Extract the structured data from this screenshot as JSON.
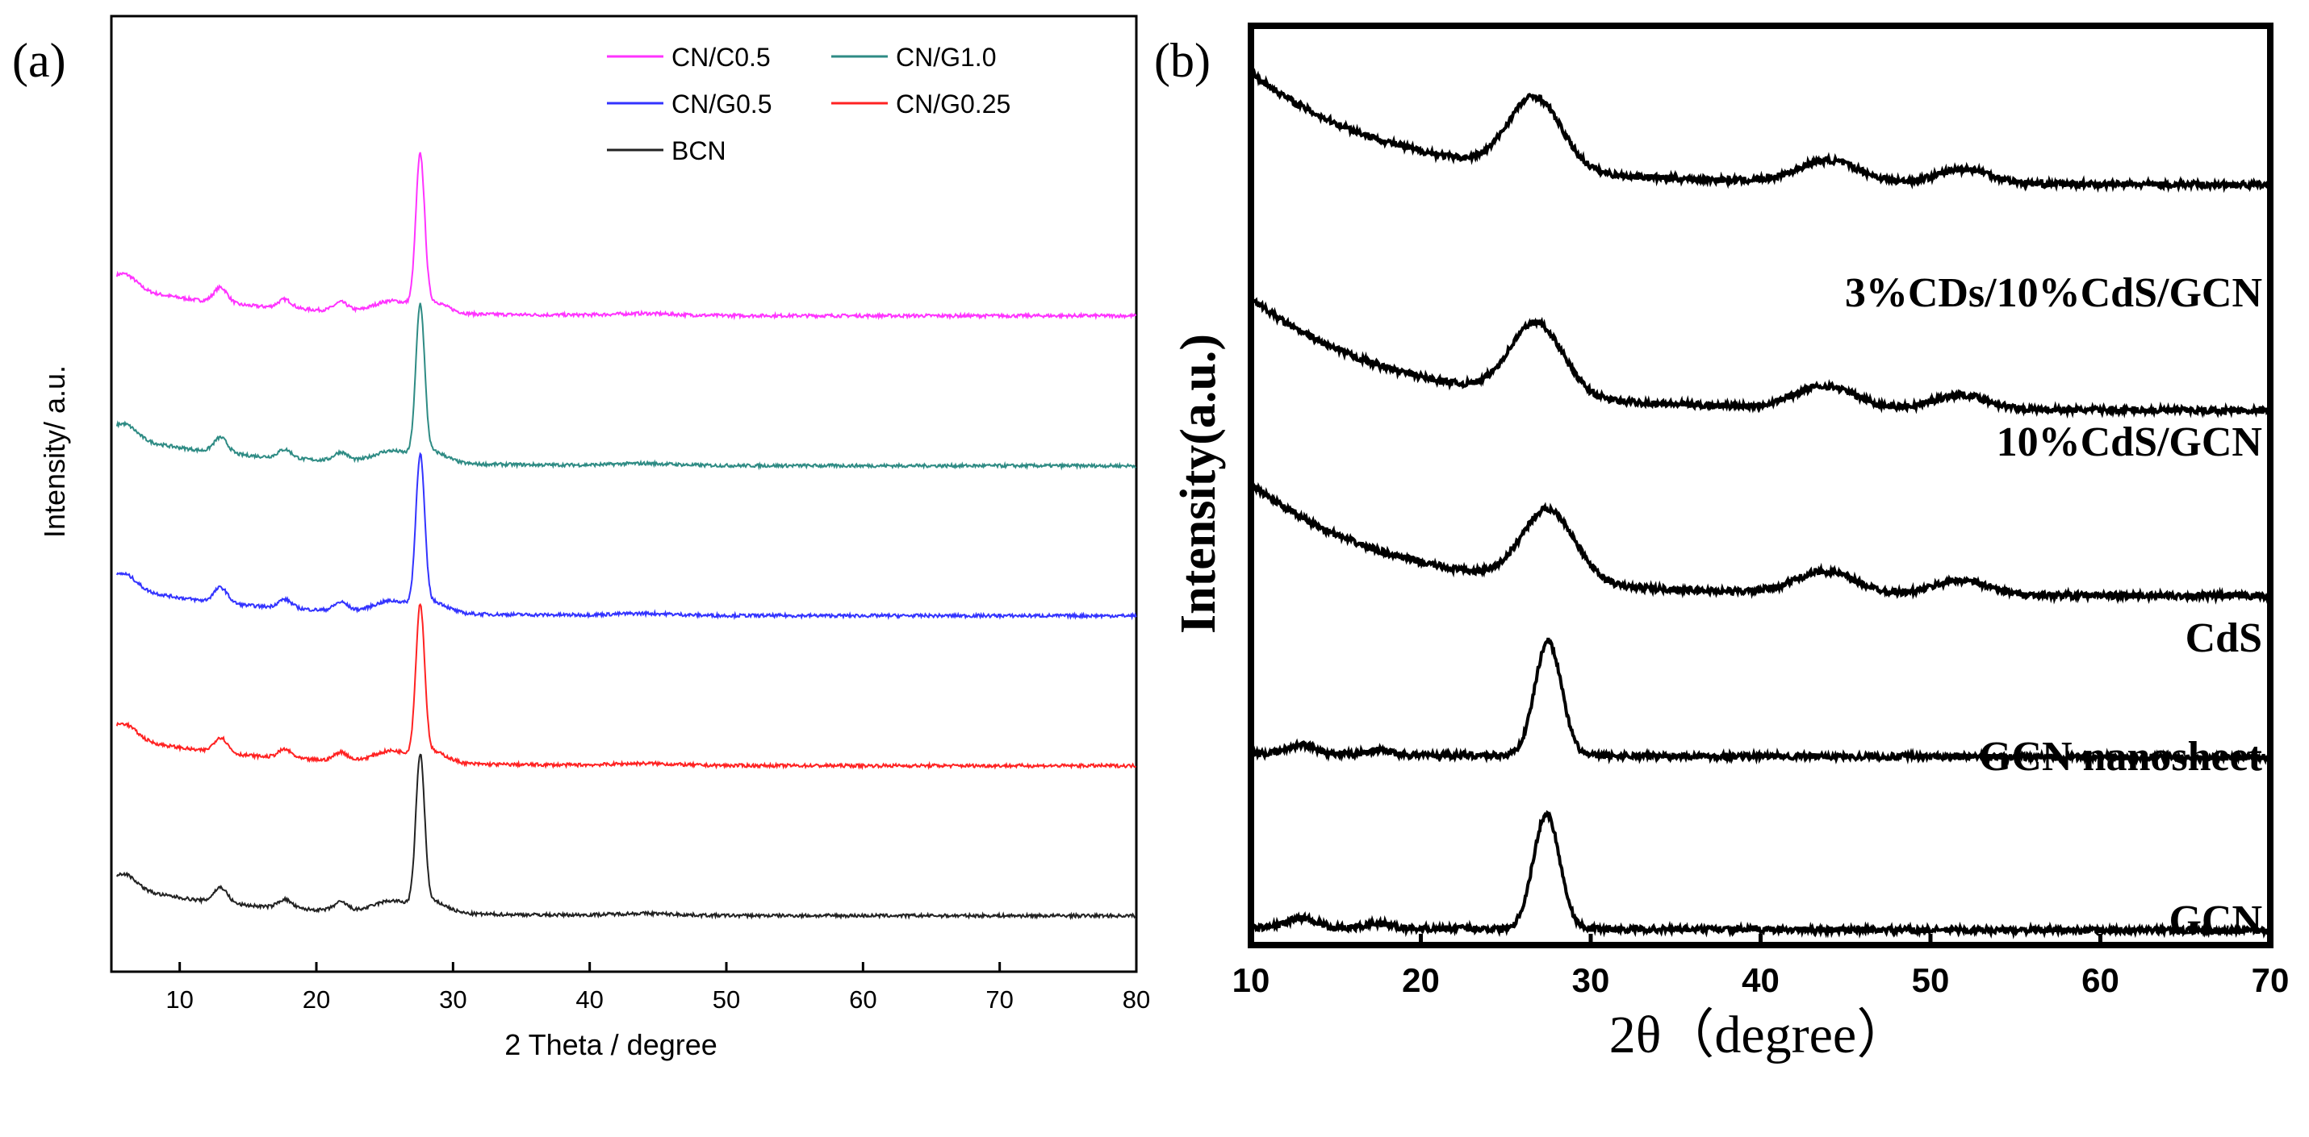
{
  "chart_data": [
    {
      "panel": "(a)",
      "type": "line",
      "xlabel": "2 Theta / degree",
      "ylabel": "Intensity/ a.u.",
      "xlim": [
        5,
        80
      ],
      "xticks": [
        10,
        20,
        30,
        40,
        50,
        60,
        70,
        80
      ],
      "y_ticks_shown": false,
      "legend": [
        {
          "name": "CN/C0.5",
          "color": "#ff33ff"
        },
        {
          "name": "CN/G1.0",
          "color": "#2e8b84"
        },
        {
          "name": "CN/G0.5",
          "color": "#3333ff"
        },
        {
          "name": "CN/G0.25",
          "color": "#ff2222"
        },
        {
          "name": "BCN",
          "color": "#222222"
        }
      ],
      "legend_position": "top-right",
      "series": [
        {
          "name": "CN/C0.5",
          "color": "#ff33ff",
          "offset": 4,
          "peak_2theta": 27.6,
          "peak_height": 1.55
        },
        {
          "name": "CN/G1.0",
          "color": "#2e8b84",
          "offset": 3,
          "peak_2theta": 27.6,
          "peak_height": 1.55
        },
        {
          "name": "CN/G0.5",
          "color": "#3333ff",
          "offset": 2,
          "peak_2theta": 27.6,
          "peak_height": 1.55
        },
        {
          "name": "CN/G0.25",
          "color": "#ff2222",
          "offset": 1,
          "peak_2theta": 27.6,
          "peak_height": 1.55
        },
        {
          "name": "BCN",
          "color": "#222222",
          "offset": 0,
          "peak_2theta": 27.6,
          "peak_height": 1.55
        }
      ],
      "minor_peaks_2theta": [
        13.0,
        17.7,
        21.8
      ]
    },
    {
      "panel": "(b)",
      "type": "line",
      "xlabel": "2θ（degree）",
      "ylabel": "Intensity(a.u.)",
      "xlim": [
        10,
        70
      ],
      "xticks": [
        10,
        20,
        30,
        40,
        50,
        60,
        70
      ],
      "y_ticks_shown": false,
      "series": [
        {
          "name": "3%CDs/10%CdS/GCN",
          "offset": 4,
          "peaks_2theta": [
            26.7,
            44.0,
            52.0
          ]
        },
        {
          "name": "10%CdS/GCN",
          "offset": 3,
          "peaks_2theta": [
            26.8,
            43.8,
            51.8
          ]
        },
        {
          "name": "CdS",
          "offset": 2,
          "peaks_2theta": [
            27.5,
            43.8,
            51.8
          ]
        },
        {
          "name": "GCN nanosheet",
          "offset": 1,
          "peaks_2theta": [
            13.0,
            27.5
          ]
        },
        {
          "name": "GCN",
          "offset": 0,
          "peaks_2theta": [
            13.0,
            17.5,
            27.4
          ]
        }
      ]
    }
  ]
}
